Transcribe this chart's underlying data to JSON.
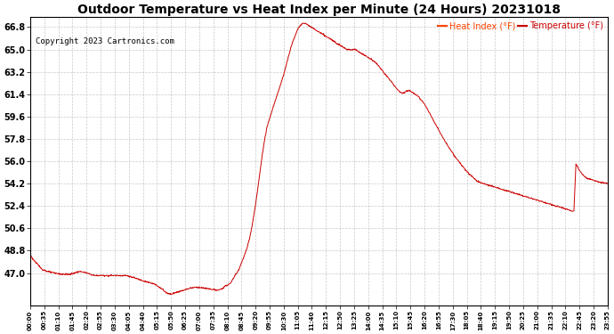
{
  "title": "Outdoor Temperature vs Heat Index per Minute (24 Hours) 20231018",
  "copyright": "Copyright 2023 Cartronics.com",
  "legend_heat": "Heat Index (°F)",
  "legend_temp": "Temperature (°F)",
  "legend_heat_color": "#ff4400",
  "legend_temp_color": "#cc0000",
  "line_color": "#cc0000",
  "title_fontsize": 10,
  "copyright_fontsize": 6.5,
  "legend_fontsize": 7,
  "background_color": "#ffffff",
  "grid_color": "#bbbbbb",
  "ylim_min": 44.4,
  "ylim_max": 67.6,
  "yticks": [
    47.0,
    48.8,
    50.6,
    52.4,
    54.2,
    56.0,
    57.8,
    59.6,
    61.4,
    63.2,
    65.0,
    66.8
  ],
  "xtick_labels": [
    "00:00",
    "00:35",
    "01:10",
    "01:45",
    "02:20",
    "02:55",
    "03:30",
    "04:05",
    "04:40",
    "05:15",
    "05:50",
    "06:25",
    "07:00",
    "07:35",
    "08:10",
    "08:45",
    "09:20",
    "09:55",
    "10:30",
    "11:05",
    "11:40",
    "12:15",
    "12:50",
    "13:25",
    "14:00",
    "14:35",
    "15:10",
    "15:45",
    "16:20",
    "16:55",
    "17:30",
    "18:05",
    "18:40",
    "19:15",
    "19:50",
    "20:25",
    "21:00",
    "21:35",
    "22:10",
    "22:45",
    "23:20",
    "23:55"
  ],
  "key_points": [
    [
      0,
      48.5
    ],
    [
      5,
      48.2
    ],
    [
      15,
      47.8
    ],
    [
      30,
      47.3
    ],
    [
      45,
      47.1
    ],
    [
      60,
      47.0
    ],
    [
      80,
      46.9
    ],
    [
      100,
      46.9
    ],
    [
      110,
      47.0
    ],
    [
      120,
      47.1
    ],
    [
      130,
      47.1
    ],
    [
      140,
      47.0
    ],
    [
      150,
      46.9
    ],
    [
      160,
      46.8
    ],
    [
      170,
      46.8
    ],
    [
      180,
      46.8
    ],
    [
      190,
      46.8
    ],
    [
      200,
      46.8
    ],
    [
      210,
      46.8
    ],
    [
      220,
      46.8
    ],
    [
      230,
      46.8
    ],
    [
      240,
      46.8
    ],
    [
      250,
      46.7
    ],
    [
      260,
      46.6
    ],
    [
      270,
      46.5
    ],
    [
      280,
      46.4
    ],
    [
      290,
      46.3
    ],
    [
      300,
      46.2
    ],
    [
      310,
      46.1
    ],
    [
      315,
      46.0
    ],
    [
      320,
      45.9
    ],
    [
      325,
      45.8
    ],
    [
      330,
      45.7
    ],
    [
      335,
      45.5
    ],
    [
      340,
      45.4
    ],
    [
      345,
      45.35
    ],
    [
      350,
      45.3
    ],
    [
      355,
      45.35
    ],
    [
      360,
      45.4
    ],
    [
      370,
      45.5
    ],
    [
      380,
      45.6
    ],
    [
      390,
      45.7
    ],
    [
      400,
      45.8
    ],
    [
      410,
      45.85
    ],
    [
      420,
      45.85
    ],
    [
      430,
      45.8
    ],
    [
      440,
      45.75
    ],
    [
      450,
      45.7
    ],
    [
      460,
      45.65
    ],
    [
      465,
      45.6
    ],
    [
      470,
      45.6
    ],
    [
      480,
      45.8
    ],
    [
      490,
      46.0
    ],
    [
      500,
      46.2
    ],
    [
      505,
      46.5
    ],
    [
      510,
      46.8
    ],
    [
      515,
      47.0
    ],
    [
      520,
      47.3
    ],
    [
      525,
      47.7
    ],
    [
      530,
      48.1
    ],
    [
      535,
      48.5
    ],
    [
      540,
      49.0
    ],
    [
      545,
      49.6
    ],
    [
      550,
      50.3
    ],
    [
      555,
      51.2
    ],
    [
      560,
      52.2
    ],
    [
      565,
      53.3
    ],
    [
      570,
      54.5
    ],
    [
      575,
      55.7
    ],
    [
      580,
      56.9
    ],
    [
      585,
      57.9
    ],
    [
      590,
      58.7
    ],
    [
      595,
      59.3
    ],
    [
      600,
      59.8
    ],
    [
      605,
      60.3
    ],
    [
      610,
      60.8
    ],
    [
      615,
      61.3
    ],
    [
      620,
      61.8
    ],
    [
      625,
      62.3
    ],
    [
      630,
      62.8
    ],
    [
      635,
      63.4
    ],
    [
      640,
      64.0
    ],
    [
      645,
      64.6
    ],
    [
      650,
      65.2
    ],
    [
      655,
      65.7
    ],
    [
      660,
      66.1
    ],
    [
      665,
      66.5
    ],
    [
      670,
      66.8
    ],
    [
      675,
      67.0
    ],
    [
      680,
      67.1
    ],
    [
      685,
      67.1
    ],
    [
      690,
      67.05
    ],
    [
      695,
      66.9
    ],
    [
      700,
      66.8
    ],
    [
      705,
      66.7
    ],
    [
      710,
      66.6
    ],
    [
      715,
      66.5
    ],
    [
      720,
      66.4
    ],
    [
      725,
      66.3
    ],
    [
      730,
      66.2
    ],
    [
      735,
      66.1
    ],
    [
      740,
      66.0
    ],
    [
      745,
      65.9
    ],
    [
      750,
      65.8
    ],
    [
      755,
      65.7
    ],
    [
      760,
      65.6
    ],
    [
      765,
      65.5
    ],
    [
      770,
      65.4
    ],
    [
      775,
      65.3
    ],
    [
      780,
      65.2
    ],
    [
      785,
      65.1
    ],
    [
      790,
      65.0
    ],
    [
      800,
      65.0
    ],
    [
      810,
      65.0
    ],
    [
      815,
      64.9
    ],
    [
      820,
      64.8
    ],
    [
      825,
      64.7
    ],
    [
      830,
      64.6
    ],
    [
      835,
      64.5
    ],
    [
      840,
      64.4
    ],
    [
      845,
      64.3
    ],
    [
      850,
      64.2
    ],
    [
      855,
      64.1
    ],
    [
      860,
      64.0
    ],
    [
      865,
      63.8
    ],
    [
      870,
      63.6
    ],
    [
      875,
      63.4
    ],
    [
      880,
      63.2
    ],
    [
      885,
      63.0
    ],
    [
      890,
      62.8
    ],
    [
      895,
      62.6
    ],
    [
      900,
      62.4
    ],
    [
      905,
      62.2
    ],
    [
      910,
      62.0
    ],
    [
      915,
      61.8
    ],
    [
      920,
      61.6
    ],
    [
      925,
      61.5
    ],
    [
      930,
      61.5
    ],
    [
      935,
      61.6
    ],
    [
      940,
      61.7
    ],
    [
      945,
      61.7
    ],
    [
      950,
      61.6
    ],
    [
      955,
      61.5
    ],
    [
      960,
      61.4
    ],
    [
      965,
      61.3
    ],
    [
      970,
      61.1
    ],
    [
      975,
      60.9
    ],
    [
      980,
      60.7
    ],
    [
      985,
      60.5
    ],
    [
      990,
      60.2
    ],
    [
      995,
      59.9
    ],
    [
      1000,
      59.6
    ],
    [
      1010,
      59.0
    ],
    [
      1020,
      58.4
    ],
    [
      1030,
      57.8
    ],
    [
      1040,
      57.3
    ],
    [
      1050,
      56.8
    ],
    [
      1060,
      56.3
    ],
    [
      1070,
      55.9
    ],
    [
      1080,
      55.5
    ],
    [
      1090,
      55.1
    ],
    [
      1100,
      54.8
    ],
    [
      1110,
      54.5
    ],
    [
      1120,
      54.3
    ],
    [
      1130,
      54.2
    ],
    [
      1140,
      54.1
    ],
    [
      1150,
      54.0
    ],
    [
      1160,
      53.9
    ],
    [
      1170,
      53.8
    ],
    [
      1180,
      53.7
    ],
    [
      1190,
      53.6
    ],
    [
      1200,
      53.5
    ],
    [
      1210,
      53.4
    ],
    [
      1220,
      53.3
    ],
    [
      1230,
      53.2
    ],
    [
      1240,
      53.1
    ],
    [
      1250,
      53.0
    ],
    [
      1260,
      52.9
    ],
    [
      1270,
      52.8
    ],
    [
      1280,
      52.7
    ],
    [
      1290,
      52.6
    ],
    [
      1300,
      52.5
    ],
    [
      1310,
      52.4
    ],
    [
      1320,
      52.3
    ],
    [
      1330,
      52.2
    ],
    [
      1340,
      52.1
    ],
    [
      1350,
      52.0
    ],
    [
      1355,
      52.0
    ],
    [
      1360,
      55.8
    ],
    [
      1365,
      55.5
    ],
    [
      1370,
      55.2
    ],
    [
      1375,
      55.0
    ],
    [
      1380,
      54.8
    ],
    [
      1390,
      54.6
    ],
    [
      1400,
      54.5
    ],
    [
      1410,
      54.4
    ],
    [
      1420,
      54.3
    ],
    [
      1430,
      54.25
    ],
    [
      1439,
      54.2
    ]
  ]
}
